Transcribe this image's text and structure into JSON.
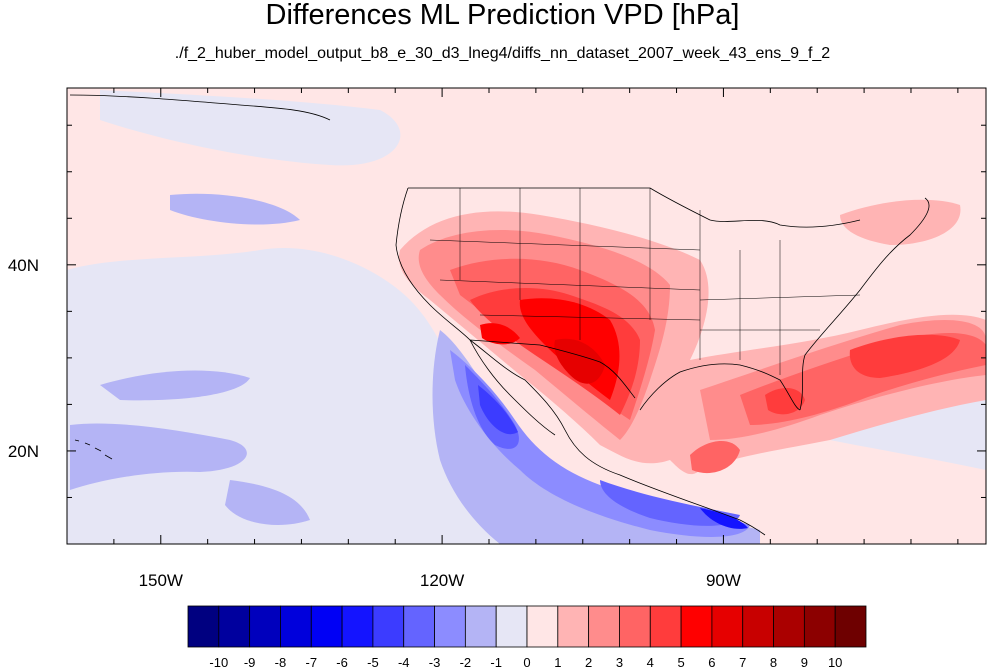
{
  "title": "Differences ML Prediction VPD [hPa]",
  "subtitle": "./f_2_huber_model_output_b8_e_30_d3_lneg4/diffs_nn_dataset_2007_week_43_ens_9_f_2",
  "map": {
    "lon_range": [
      -160,
      -62
    ],
    "lat_range": [
      10,
      59
    ],
    "x_ticks": [
      {
        "lon": -150,
        "label": "150W"
      },
      {
        "lon": -120,
        "label": "120W"
      },
      {
        "lon": -90,
        "label": "90W"
      }
    ],
    "y_ticks": [
      {
        "lat": 40,
        "label": "40N"
      },
      {
        "lat": 20,
        "label": "20N"
      }
    ]
  },
  "colorbar": {
    "labels": [
      "-10",
      "-9",
      "-8",
      "-7",
      "-6",
      "-5",
      "-4",
      "-3",
      "-2",
      "-1",
      "0",
      "1",
      "2",
      "3",
      "4",
      "5",
      "6",
      "7",
      "8",
      "9",
      "10"
    ],
    "colors": [
      "#000080",
      "#00009e",
      "#0000bd",
      "#0000dc",
      "#0000f5",
      "#1414ff",
      "#3c3cff",
      "#6464ff",
      "#8c8cff",
      "#b4b4f5",
      "#e6e6f5",
      "#ffe6e6",
      "#ffb4b4",
      "#ff8c8c",
      "#ff6464",
      "#ff3c3c",
      "#ff0000",
      "#e60000",
      "#c80000",
      "#aa0000",
      "#8c0000",
      "#6e0000"
    ]
  }
}
